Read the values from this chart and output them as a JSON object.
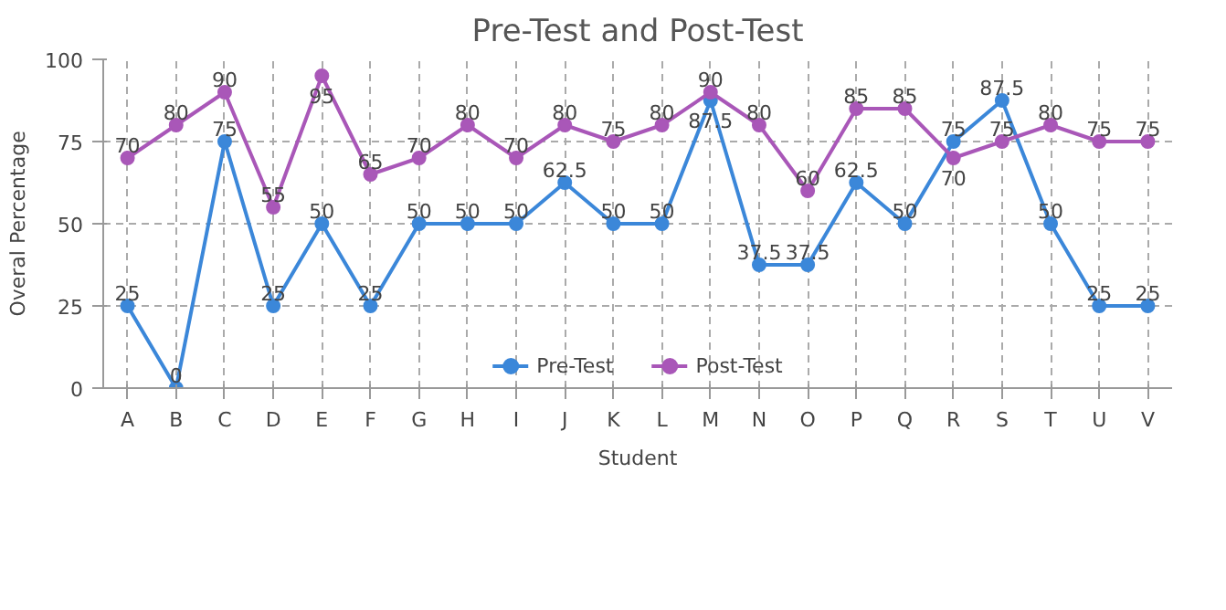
{
  "chart_data": {
    "type": "line",
    "title": "Pre-Test and Post-Test",
    "xlabel": "Student",
    "ylabel": "Overal Percentage",
    "categories": [
      "A",
      "B",
      "C",
      "D",
      "E",
      "F",
      "G",
      "H",
      "I",
      "J",
      "K",
      "L",
      "M",
      "N",
      "O",
      "P",
      "Q",
      "R",
      "S",
      "T",
      "U",
      "V"
    ],
    "series": [
      {
        "name": "Pre-Test",
        "color": "#3b87d9",
        "values": [
          25,
          0,
          75,
          25,
          50,
          25,
          50,
          50,
          50,
          62.5,
          50,
          50,
          87.5,
          37.5,
          37.5,
          62.5,
          50,
          75,
          87.5,
          50,
          25,
          25
        ]
      },
      {
        "name": "Post-Test",
        "color": "#a957b8",
        "values": [
          70,
          80,
          90,
          55,
          95,
          65,
          70,
          80,
          70,
          80,
          75,
          80,
          90,
          80,
          60,
          85,
          85,
          70,
          75,
          80,
          75,
          75
        ]
      }
    ],
    "ylim": [
      0,
      100
    ],
    "yticks": [
      0,
      25,
      50,
      75,
      100
    ],
    "grid": true,
    "legend": "bottom",
    "marker": "circle",
    "line_style": "solid",
    "data_labels": true
  }
}
